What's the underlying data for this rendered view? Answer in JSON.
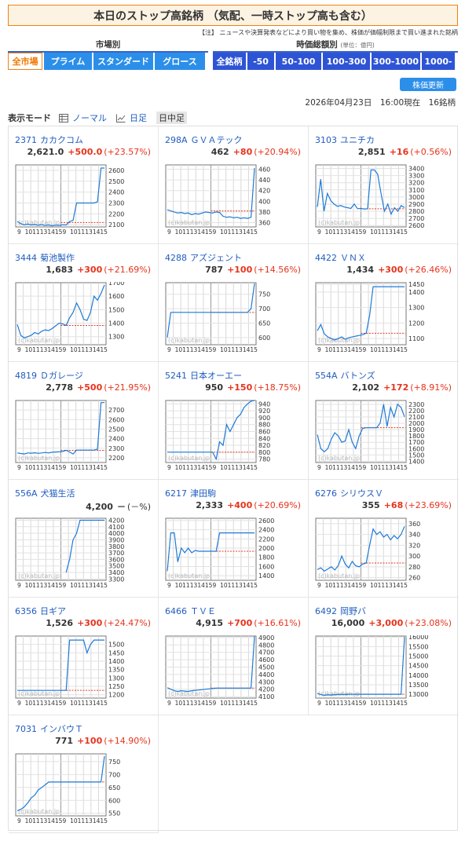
{
  "title": "本日のストップ高銘柄 （気配、一時ストップ高も含む）",
  "note": "【注】 ニュースや決算発表などにより買い物を集め、株価が価幅制限まで買い進まれた銘柄",
  "market_section": {
    "label": "市場別",
    "tabs": [
      "全市場",
      "プライム",
      "スタンダード",
      "グロース"
    ],
    "active": 0
  },
  "cap_section": {
    "label": "時価総額別",
    "unit": "(単位：億円)",
    "tabs": [
      "全銘柄",
      "-50",
      "50-100",
      "100-300",
      "300-1000",
      "1000-"
    ],
    "active": 0
  },
  "refresh_label": "株価更新",
  "timestamp": "2026年04月23日　16:00現在　16銘柄",
  "display_mode": {
    "label": "表示モード",
    "options": [
      "ノーマル",
      "日足",
      "日中足"
    ],
    "active": 2
  },
  "watermark": "(c)kabutan.jp",
  "x_ticks": [
    "9",
    "10",
    "11",
    "13",
    "14",
    "15",
    "9",
    "10",
    "11",
    "13",
    "14",
    "15"
  ],
  "colors": {
    "line": "#1c7ad8",
    "ref_line": "#e03c2c",
    "up": "#e8331c",
    "link": "#1f5cc0",
    "tab": "#2b8fea",
    "tab_cap": "#2e54d6",
    "accent": "#f08010"
  },
  "stocks": [
    {
      "code": "2371",
      "name": "カカクコム",
      "price": "2,621.0",
      "change": "+500.0",
      "pct": "(+23.57%)",
      "chart_data": {
        "type": "line",
        "ylim": [
          2080,
          2650
        ],
        "yticks": [
          "2600",
          "2500",
          "2400",
          "2300",
          "2200",
          "2100"
        ],
        "ref": 2121,
        "y": [
          2130,
          2110,
          2100,
          2105,
          2098,
          2102,
          2095,
          2100,
          2092,
          2098,
          2090,
          2096,
          2094,
          2100,
          2098,
          2130,
          2140,
          2300,
          2300,
          2300,
          2300,
          2300,
          2300,
          2310,
          2621,
          2621
        ]
      }
    },
    {
      "code": "298A",
      "name": "ＧＶＡテック",
      "price": "462",
      "change": "+80",
      "pct": "(+20.94%)",
      "chart_data": {
        "type": "line",
        "ylim": [
          352,
          468
        ],
        "yticks": [
          "460",
          "440",
          "420",
          "400",
          "380",
          "360"
        ],
        "ref": 382,
        "y": [
          384,
          382,
          380,
          378,
          379,
          377,
          378,
          375,
          377,
          376,
          378,
          380,
          379,
          378,
          380,
          379,
          372,
          370,
          371,
          369,
          370,
          368,
          369,
          368,
          370,
          462
        ]
      }
    },
    {
      "code": "3103",
      "name": "ユニチカ",
      "price": "2,851",
      "change": "+16",
      "pct": "(+0.56%)",
      "chart_data": {
        "type": "line",
        "ylim": [
          2580,
          3450
        ],
        "yticks": [
          "3400",
          "3300",
          "3200",
          "3100",
          "3000",
          "2900",
          "2800",
          "2700",
          "2600"
        ],
        "ref": 2835,
        "y": [
          2860,
          3250,
          2800,
          3050,
          2950,
          2900,
          2870,
          2880,
          2860,
          2850,
          2840,
          2900,
          2835,
          2840,
          2830,
          2835,
          3380,
          3380,
          3320,
          3050,
          2800,
          2900,
          2760,
          2850,
          2800,
          2880,
          2851
        ]
      }
    },
    {
      "code": "3444",
      "name": "菊池製作",
      "price": "1,683",
      "change": "+300",
      "pct": "(+21.69%)",
      "chart_data": {
        "type": "line",
        "ylim": [
          1240,
          1700
        ],
        "yticks": [
          "1700",
          "1600",
          "1500",
          "1400",
          "1300"
        ],
        "ref": 1383,
        "y": [
          1390,
          1310,
          1290,
          1300,
          1310,
          1330,
          1320,
          1340,
          1350,
          1345,
          1360,
          1380,
          1400,
          1395,
          1383,
          1440,
          1480,
          1550,
          1500,
          1430,
          1420,
          1480,
          1600,
          1570,
          1620,
          1683
        ]
      }
    },
    {
      "code": "4288",
      "name": "アズジェント",
      "price": "787",
      "change": "+100",
      "pct": "(+14.56%)",
      "chart_data": {
        "type": "line",
        "ylim": [
          575,
          790
        ],
        "yticks": [
          "750",
          "700",
          "650",
          "600"
        ],
        "ref": 687,
        "y": [
          600,
          687,
          687,
          687,
          687,
          687,
          687,
          687,
          687,
          687,
          687,
          687,
          687,
          687,
          687,
          687,
          687,
          687,
          687,
          687,
          687,
          687,
          687,
          687,
          700,
          787
        ]
      }
    },
    {
      "code": "4422",
      "name": "ＶＮＸ",
      "price": "1,434",
      "change": "+300",
      "pct": "(+26.46%)",
      "chart_data": {
        "type": "line",
        "ylim": [
          1060,
          1460
        ],
        "yticks": [
          "1450",
          "1400",
          "1300",
          "1200",
          "1100"
        ],
        "ref": 1134,
        "y": [
          1150,
          1190,
          1130,
          1110,
          1100,
          1090,
          1100,
          1110,
          1095,
          1105,
          1110,
          1115,
          1120,
          1125,
          1134,
          1250,
          1434,
          1434,
          1434,
          1434,
          1434,
          1434,
          1434,
          1434,
          1434,
          1434
        ]
      }
    },
    {
      "code": "4819",
      "name": "Ｄガレージ",
      "price": "2,778",
      "change": "+500",
      "pct": "(+21.95%)",
      "chart_data": {
        "type": "line",
        "ylim": [
          2150,
          2800
        ],
        "yticks": [
          "2700",
          "2600",
          "2500",
          "2400",
          "2300",
          "2200"
        ],
        "ref": 2278,
        "y": [
          2250,
          2245,
          2240,
          2250,
          2248,
          2252,
          2246,
          2250,
          2255,
          2250,
          2258,
          2260,
          2262,
          2265,
          2278,
          2260,
          2240,
          2280,
          2280,
          2280,
          2280,
          2280,
          2280,
          2290,
          2778,
          2778
        ]
      }
    },
    {
      "code": "5241",
      "name": "日本オーエー",
      "price": "950",
      "change": "+150",
      "pct": "(+18.75%)",
      "chart_data": {
        "type": "line",
        "ylim": [
          770,
          950
        ],
        "yticks": [
          "940",
          "920",
          "900",
          "880",
          "860",
          "840",
          "820",
          "800",
          "780"
        ],
        "ref": 800,
        "y": [
          800,
          800,
          800,
          800,
          800,
          800,
          800,
          800,
          800,
          800,
          800,
          800,
          800,
          800,
          780,
          830,
          820,
          880,
          860,
          880,
          900,
          910,
          930,
          940,
          948,
          950
        ]
      }
    },
    {
      "code": "554A",
      "name": "バトンズ",
      "price": "2,102",
      "change": "+172",
      "pct": "(+8.91%)",
      "chart_data": {
        "type": "line",
        "ylim": [
          1380,
          2360
        ],
        "yticks": [
          "2300",
          "2200",
          "2100",
          "2000",
          "1900",
          "1800",
          "1700",
          "1600",
          "1500",
          "1400"
        ],
        "ref": 1930,
        "y": [
          1820,
          1600,
          1550,
          1600,
          1750,
          1850,
          1800,
          1700,
          1720,
          1900,
          1700,
          1600,
          1800,
          1920,
          1930,
          1930,
          1930,
          1930,
          2000,
          2300,
          1950,
          2250,
          2100,
          2300,
          2250,
          2102
        ]
      }
    },
    {
      "code": "556A",
      "name": "犬猫生活",
      "price": "4,200",
      "change": "－",
      "pct": "(－%)",
      "chart_data": {
        "type": "line",
        "ylim": [
          3280,
          4230
        ],
        "yticks": [
          "4200",
          "4100",
          "4000",
          "3900",
          "3800",
          "3700",
          "3600",
          "3500",
          "3400",
          "3300"
        ],
        "ref": null,
        "y": [
          null,
          null,
          null,
          null,
          null,
          null,
          null,
          null,
          null,
          null,
          null,
          null,
          null,
          null,
          3400,
          3600,
          3900,
          4000,
          4200,
          4200,
          4200,
          4200,
          4200,
          4200,
          4200,
          4200
        ]
      }
    },
    {
      "code": "6217",
      "name": "津田駒",
      "price": "2,333",
      "change": "+400",
      "pct": "(+20.69%)",
      "chart_data": {
        "type": "line",
        "ylim": [
          1300,
          2650
        ],
        "yticks": [
          "2600",
          "2400",
          "2200",
          "2000",
          "1800",
          "1600",
          "1400"
        ],
        "ref": 1933,
        "y": [
          1500,
          2333,
          2333,
          1700,
          2000,
          1900,
          2000,
          1900,
          1950,
          1933,
          1933,
          1933,
          1933,
          1933,
          1933,
          2333,
          2333,
          2333,
          2333,
          2333,
          2333,
          2333,
          2333,
          2333,
          2333,
          2333
        ]
      }
    },
    {
      "code": "6276",
      "name": "シリウスＶ",
      "price": "355",
      "change": "+68",
      "pct": "(+23.69%)",
      "chart_data": {
        "type": "line",
        "ylim": [
          255,
          370
        ],
        "yticks": [
          "360",
          "340",
          "320",
          "300",
          "280",
          "260"
        ],
        "ref": 287,
        "y": [
          275,
          278,
          272,
          276,
          280,
          274,
          282,
          300,
          285,
          278,
          290,
          282,
          280,
          285,
          287,
          320,
          350,
          340,
          345,
          335,
          340,
          330,
          338,
          332,
          340,
          355
        ]
      }
    },
    {
      "code": "6356",
      "name": "日ギア",
      "price": "1,526",
      "change": "+300",
      "pct": "(+24.47%)",
      "chart_data": {
        "type": "line",
        "ylim": [
          1180,
          1550
        ],
        "yticks": [
          "1500",
          "1450",
          "1400",
          "1350",
          "1300",
          "1250",
          "1200"
        ],
        "ref": 1226,
        "y": [
          1226,
          1226,
          1226,
          1226,
          1226,
          1226,
          1226,
          1226,
          1226,
          1226,
          1226,
          1226,
          1226,
          1226,
          1226,
          1526,
          1526,
          1526,
          1526,
          1526,
          1450,
          1500,
          1526,
          1526,
          1526,
          1526
        ]
      }
    },
    {
      "code": "6466",
      "name": "ＴＶＥ",
      "price": "4,915",
      "change": "+700",
      "pct": "(+16.61%)",
      "chart_data": {
        "type": "line",
        "ylim": [
          4080,
          4920
        ],
        "yticks": [
          "4900",
          "4800",
          "4700",
          "4600",
          "4500",
          "4400",
          "4300",
          "4200",
          "4100"
        ],
        "ref": 4215,
        "y": [
          4220,
          4200,
          4180,
          4170,
          4180,
          4175,
          4170,
          4180,
          4185,
          4190,
          4195,
          4200,
          4205,
          4210,
          4215,
          4215,
          4215,
          4215,
          4215,
          4215,
          4215,
          4215,
          4215,
          4215,
          4215,
          4915
        ]
      }
    },
    {
      "code": "6492",
      "name": "岡野バ",
      "price": "16,000",
      "change": "+3,000",
      "pct": "(+23.08%)",
      "chart_data": {
        "type": "line",
        "ylim": [
          12800,
          16050
        ],
        "yticks": [
          "16000",
          "15500",
          "15000",
          "14500",
          "14000",
          "13500",
          "13000"
        ],
        "ref": 13000,
        "y": [
          13050,
          12980,
          12950,
          12970,
          12960,
          12980,
          12990,
          13000,
          12990,
          13000,
          13000,
          13000,
          13000,
          13000,
          13000,
          13000,
          13000,
          13000,
          13000,
          13000,
          13000,
          13000,
          13000,
          13000,
          13000,
          16000
        ]
      }
    },
    {
      "code": "7031",
      "name": "インバウＴ",
      "price": "771",
      "change": "+100",
      "pct": "(+14.90%)",
      "chart_data": {
        "type": "line",
        "ylim": [
          540,
          780
        ],
        "yticks": [
          "750",
          "700",
          "650",
          "600",
          "550"
        ],
        "ref": 671,
        "y": [
          560,
          565,
          575,
          590,
          610,
          620,
          640,
          650,
          660,
          671,
          671,
          671,
          671,
          671,
          671,
          671,
          671,
          671,
          671,
          671,
          671,
          671,
          671,
          671,
          671,
          771
        ]
      }
    }
  ]
}
